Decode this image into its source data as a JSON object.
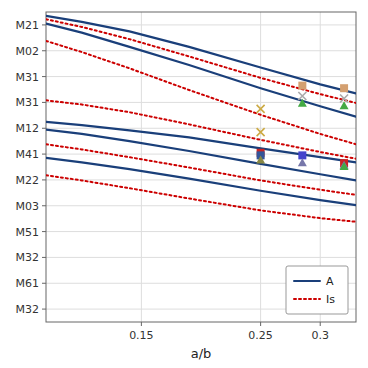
{
  "chart_data": {
    "type": "line",
    "xlabel": "a/b",
    "xlim": [
      0.07,
      0.33
    ],
    "xticks": [
      0.15,
      0.25,
      0.3
    ],
    "ylim": [
      12,
      0
    ],
    "yticks": [
      {
        "value": 0.5,
        "label": "M21"
      },
      {
        "value": 1.5,
        "label": "M02"
      },
      {
        "value": 2.5,
        "label": "M31"
      },
      {
        "value": 3.5,
        "label": "M31"
      },
      {
        "value": 4.5,
        "label": "M12"
      },
      {
        "value": 5.5,
        "label": "M41"
      },
      {
        "value": 6.5,
        "label": "M22"
      },
      {
        "value": 7.5,
        "label": "M03"
      },
      {
        "value": 8.5,
        "label": "M51"
      },
      {
        "value": 9.5,
        "label": "M32"
      },
      {
        "value": 10.5,
        "label": "M61"
      },
      {
        "value": 11.5,
        "label": "M32"
      }
    ],
    "grid": true,
    "legend": "lower right",
    "series": [
      {
        "name": "A",
        "type": "line",
        "color": "#1a3f7a",
        "line_style": "solid",
        "x": [
          0.07,
          0.1,
          0.14,
          0.19,
          0.25,
          0.3,
          0.33
        ],
        "values": [
          0.15,
          0.38,
          0.75,
          1.35,
          2.15,
          2.8,
          3.15
        ]
      },
      {
        "name": "A",
        "type": "line",
        "color": "#1a3f7a",
        "line_style": "solid",
        "x": [
          0.07,
          0.1,
          0.14,
          0.19,
          0.25,
          0.3,
          0.33
        ],
        "values": [
          0.45,
          0.8,
          1.35,
          2.05,
          2.95,
          3.65,
          4.05
        ]
      },
      {
        "name": "A",
        "type": "line",
        "color": "#1a3f7a",
        "line_style": "solid",
        "x": [
          0.07,
          0.1,
          0.14,
          0.19,
          0.25,
          0.3,
          0.33
        ],
        "values": [
          4.25,
          4.38,
          4.58,
          4.85,
          5.28,
          5.62,
          5.82
        ]
      },
      {
        "name": "A",
        "type": "line",
        "color": "#1a3f7a",
        "line_style": "solid",
        "x": [
          0.07,
          0.1,
          0.14,
          0.19,
          0.25,
          0.3,
          0.33
        ],
        "values": [
          4.55,
          4.72,
          5.0,
          5.38,
          5.88,
          6.28,
          6.52
        ]
      },
      {
        "name": "A",
        "type": "line",
        "color": "#1a3f7a",
        "line_style": "solid",
        "x": [
          0.07,
          0.1,
          0.14,
          0.19,
          0.25,
          0.3,
          0.33
        ],
        "values": [
          5.65,
          5.82,
          6.08,
          6.45,
          6.92,
          7.28,
          7.48
        ]
      },
      {
        "name": "Is",
        "type": "line",
        "color": "#cc0000",
        "line_style": "dotted",
        "x": [
          0.07,
          0.1,
          0.14,
          0.19,
          0.25,
          0.3,
          0.33
        ],
        "values": [
          0.28,
          0.58,
          1.05,
          1.72,
          2.55,
          3.18,
          3.52
        ]
      },
      {
        "name": "Is",
        "type": "line",
        "color": "#cc0000",
        "line_style": "dotted",
        "x": [
          0.07,
          0.1,
          0.14,
          0.19,
          0.25,
          0.3,
          0.33
        ],
        "values": [
          1.12,
          1.55,
          2.18,
          3.02,
          3.98,
          4.72,
          5.12
        ]
      },
      {
        "name": "Is",
        "type": "line",
        "color": "#cc0000",
        "line_style": "dotted",
        "x": [
          0.07,
          0.1,
          0.14,
          0.19,
          0.25,
          0.3,
          0.33
        ],
        "values": [
          3.42,
          3.58,
          3.88,
          4.35,
          4.95,
          5.42,
          5.68
        ]
      },
      {
        "name": "Is",
        "type": "line",
        "color": "#cc0000",
        "line_style": "dotted",
        "x": [
          0.07,
          0.1,
          0.14,
          0.19,
          0.25,
          0.3,
          0.33
        ],
        "values": [
          5.12,
          5.32,
          5.62,
          6.02,
          6.52,
          6.88,
          7.08
        ]
      },
      {
        "name": "Is",
        "type": "line",
        "color": "#cc0000",
        "line_style": "dotted",
        "x": [
          0.07,
          0.1,
          0.14,
          0.19,
          0.25,
          0.3,
          0.33
        ],
        "values": [
          6.32,
          6.52,
          6.82,
          7.22,
          7.68,
          7.98,
          8.12
        ]
      },
      {
        "type": "scatter",
        "marker": "square",
        "color": "#d4a070",
        "x": [
          0.285
        ],
        "values": [
          2.85
        ]
      },
      {
        "type": "scatter",
        "marker": "square",
        "color": "#d4a070",
        "x": [
          0.32
        ],
        "values": [
          2.95
        ]
      },
      {
        "type": "scatter",
        "marker": "x",
        "color": "#aaaaaa",
        "x": [
          0.285
        ],
        "values": [
          3.25
        ]
      },
      {
        "type": "scatter",
        "marker": "x",
        "color": "#aaaaaa",
        "x": [
          0.32
        ],
        "values": [
          3.35
        ]
      },
      {
        "type": "scatter",
        "marker": "x",
        "color": "#ccaa44",
        "x": [
          0.25
        ],
        "values": [
          3.75
        ]
      },
      {
        "type": "scatter",
        "marker": "triangle",
        "color": "#44aa44",
        "x": [
          0.285
        ],
        "values": [
          3.55
        ]
      },
      {
        "type": "scatter",
        "marker": "triangle",
        "color": "#44aa44",
        "x": [
          0.32
        ],
        "values": [
          3.65
        ]
      },
      {
        "type": "scatter",
        "marker": "x",
        "color": "#ccaa44",
        "x": [
          0.25
        ],
        "values": [
          4.65
        ]
      },
      {
        "type": "scatter",
        "marker": "square",
        "color": "#cc2222",
        "x": [
          0.25
        ],
        "values": [
          5.45
        ]
      },
      {
        "type": "scatter",
        "marker": "square",
        "color": "#335599",
        "x": [
          0.25
        ],
        "values": [
          5.55
        ]
      },
      {
        "type": "scatter",
        "marker": "square",
        "color": "#4444cc",
        "x": [
          0.285
        ],
        "values": [
          5.55
        ]
      },
      {
        "type": "scatter",
        "marker": "square",
        "color": "#cc2222",
        "x": [
          0.32
        ],
        "values": [
          5.85
        ]
      },
      {
        "type": "scatter",
        "marker": "triangle",
        "color": "#888844",
        "x": [
          0.25
        ],
        "values": [
          5.75
        ]
      },
      {
        "type": "scatter",
        "marker": "triangle",
        "color": "#7777aa",
        "x": [
          0.285
        ],
        "values": [
          5.85
        ]
      },
      {
        "type": "scatter",
        "marker": "triangle",
        "color": "#7777aa",
        "x": [
          0.32
        ],
        "values": [
          5.95
        ]
      },
      {
        "type": "scatter",
        "marker": "triangle",
        "color": "#44aa44",
        "x": [
          0.32
        ],
        "values": [
          6.0
        ]
      }
    ]
  }
}
